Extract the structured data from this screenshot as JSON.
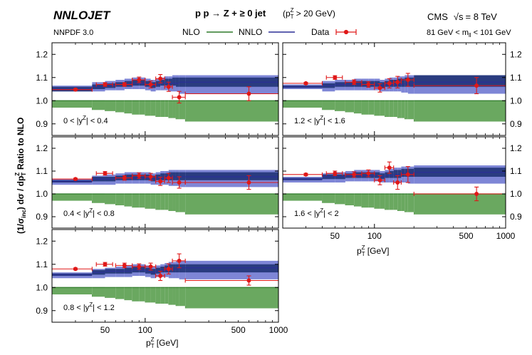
{
  "header": {
    "brand": "NNLOJET",
    "pdf": "NNPDF 3.0",
    "process": "p p → Z + ≥ 0 jet",
    "cut_p": "(p",
    "cut_T": "T",
    "cut_Z": "Z",
    "cut_rest": " > 20 GeV)",
    "experiment": "CMS",
    "sqrt": "√s",
    "energy": "= 8 TeV",
    "mass_left": "81 GeV < m",
    "mass_sub": "ll",
    "mass_right": " < 101 GeV"
  },
  "legend": {
    "nlo": "NLO",
    "nnlo": "NNLO",
    "data": "Data"
  },
  "axes": {
    "ylabel": "(1/σinc) dσ / dp_T^Z",
    "ylabel_a": "(1/σ",
    "ylabel_sub": "inc",
    "ylabel_b": ") dσ / dp",
    "ylabel_c": "T",
    "ylabel_d": "Z",
    "ylabel2": "Ratio to NLO",
    "xlabel_p": "p",
    "xlabel_T": "T",
    "xlabel_Z": "Z",
    "xlabel_unit": " [GeV]"
  },
  "colors": {
    "nlo_band": "#6aa860",
    "nlo_line": "#2f7a2a",
    "nnlo_band": "#7e86d6",
    "nnlo_core": "#2a3c80",
    "nnlo_line": "#2b2f96",
    "data": "#e01818"
  },
  "chart_data": {
    "type": "scatter",
    "xscale": "log",
    "xlim": [
      20,
      1000
    ],
    "ylim": [
      0.85,
      1.25
    ],
    "x_ticks": [
      50,
      100,
      500,
      1000
    ],
    "y_ticks": [
      0.9,
      1.0,
      1.1,
      1.2
    ],
    "bin_edges": [
      20,
      40,
      50,
      60,
      70,
      80,
      90,
      100,
      110,
      120,
      130,
      140,
      150,
      160,
      170,
      180,
      200,
      1000
    ],
    "panels": [
      {
        "label": "0 < |y^Z| < 0.4",
        "label_a": "0 < |y",
        "label_sup": "Z",
        "label_b": "| < 0.4",
        "nlo_lo": [
          0.97,
          0.96,
          0.955,
          0.95,
          0.945,
          0.94,
          0.94,
          0.935,
          0.935,
          0.93,
          0.93,
          0.93,
          0.925,
          0.925,
          0.92,
          0.92,
          0.91
        ],
        "nnlo": [
          1.05,
          1.06,
          1.065,
          1.07,
          1.07,
          1.075,
          1.075,
          1.07,
          1.065,
          1.07,
          1.075,
          1.075,
          1.075,
          1.075,
          1.075,
          1.08,
          1.08
        ],
        "nnlo_lo": [
          1.04,
          1.05,
          1.055,
          1.06,
          1.06,
          1.065,
          1.065,
          1.06,
          1.055,
          1.06,
          1.065,
          1.065,
          1.065,
          1.065,
          1.06,
          1.06,
          1.06
        ],
        "nnlo_hi": [
          1.06,
          1.07,
          1.075,
          1.08,
          1.085,
          1.09,
          1.09,
          1.085,
          1.08,
          1.085,
          1.09,
          1.095,
          1.095,
          1.1,
          1.1,
          1.1,
          1.1
        ],
        "band_lo": [
          1.04,
          1.04,
          1.045,
          1.045,
          1.05,
          1.05,
          1.05,
          1.045,
          1.04,
          1.045,
          1.045,
          1.045,
          1.04,
          1.04,
          1.04,
          1.03,
          1.03
        ],
        "band_hi": [
          1.065,
          1.08,
          1.085,
          1.09,
          1.095,
          1.1,
          1.1,
          1.095,
          1.09,
          1.095,
          1.1,
          1.105,
          1.105,
          1.11,
          1.11,
          1.11,
          1.11
        ],
        "data": [
          {
            "x": 30,
            "y": 1.048,
            "xlo": 20,
            "xhi": 40,
            "err": 0.004
          },
          {
            "x": 50,
            "y": 1.07,
            "xlo": 43,
            "xhi": 57,
            "err": 0.008
          },
          {
            "x": 70,
            "y": 1.07,
            "xlo": 60,
            "xhi": 80,
            "err": 0.008
          },
          {
            "x": 90,
            "y": 1.09,
            "xlo": 80,
            "xhi": 100,
            "err": 0.012
          },
          {
            "x": 110,
            "y": 1.07,
            "xlo": 100,
            "xhi": 120,
            "err": 0.015
          },
          {
            "x": 130,
            "y": 1.095,
            "xlo": 120,
            "xhi": 140,
            "err": 0.018
          },
          {
            "x": 150,
            "y": 1.06,
            "xlo": 140,
            "xhi": 160,
            "err": 0.02
          },
          {
            "x": 180,
            "y": 1.015,
            "xlo": 160,
            "xhi": 200,
            "err": 0.025
          },
          {
            "x": 600,
            "y": 1.03,
            "xlo": 200,
            "xhi": 1000,
            "err": 0.03
          }
        ]
      },
      {
        "label": "1.2 < |y^Z| < 1.6",
        "label_a": "1.2 < |y",
        "label_sup": "Z",
        "label_b": "| < 1.6",
        "nlo_lo": [
          0.97,
          0.96,
          0.955,
          0.95,
          0.945,
          0.94,
          0.94,
          0.935,
          0.935,
          0.93,
          0.93,
          0.93,
          0.925,
          0.925,
          0.92,
          0.92,
          0.91
        ],
        "nnlo": [
          1.06,
          1.065,
          1.07,
          1.07,
          1.07,
          1.07,
          1.07,
          1.07,
          1.065,
          1.07,
          1.07,
          1.07,
          1.07,
          1.07,
          1.075,
          1.075,
          1.08
        ],
        "nnlo_lo": [
          1.055,
          1.055,
          1.06,
          1.06,
          1.06,
          1.06,
          1.06,
          1.06,
          1.055,
          1.06,
          1.06,
          1.06,
          1.06,
          1.06,
          1.06,
          1.06,
          1.06
        ],
        "nnlo_hi": [
          1.065,
          1.075,
          1.08,
          1.08,
          1.085,
          1.085,
          1.085,
          1.085,
          1.08,
          1.085,
          1.09,
          1.09,
          1.095,
          1.095,
          1.1,
          1.1,
          1.11
        ],
        "band_lo": [
          1.05,
          1.04,
          1.045,
          1.045,
          1.045,
          1.045,
          1.045,
          1.045,
          1.04,
          1.04,
          1.04,
          1.04,
          1.04,
          1.035,
          1.035,
          1.03,
          1.03
        ],
        "band_hi": [
          1.07,
          1.085,
          1.09,
          1.09,
          1.095,
          1.095,
          1.095,
          1.095,
          1.09,
          1.095,
          1.1,
          1.1,
          1.105,
          1.105,
          1.11,
          1.11,
          1.11
        ],
        "data": [
          {
            "x": 30,
            "y": 1.075,
            "xlo": 20,
            "xhi": 40,
            "err": 0.004
          },
          {
            "x": 50,
            "y": 1.1,
            "xlo": 43,
            "xhi": 57,
            "err": 0.008
          },
          {
            "x": 70,
            "y": 1.08,
            "xlo": 60,
            "xhi": 80,
            "err": 0.01
          },
          {
            "x": 90,
            "y": 1.07,
            "xlo": 80,
            "xhi": 100,
            "err": 0.012
          },
          {
            "x": 110,
            "y": 1.055,
            "xlo": 100,
            "xhi": 120,
            "err": 0.018
          },
          {
            "x": 130,
            "y": 1.075,
            "xlo": 120,
            "xhi": 140,
            "err": 0.02
          },
          {
            "x": 150,
            "y": 1.08,
            "xlo": 140,
            "xhi": 160,
            "err": 0.025
          },
          {
            "x": 180,
            "y": 1.09,
            "xlo": 160,
            "xhi": 200,
            "err": 0.028
          },
          {
            "x": 600,
            "y": 1.065,
            "xlo": 200,
            "xhi": 1000,
            "err": 0.035
          }
        ]
      },
      {
        "label": "0.4 < |y^Z| < 0.8",
        "label_a": "0.4 < |y",
        "label_sup": "Z",
        "label_b": "| < 0.8",
        "nlo_lo": [
          0.97,
          0.96,
          0.955,
          0.95,
          0.945,
          0.94,
          0.94,
          0.935,
          0.935,
          0.93,
          0.93,
          0.93,
          0.925,
          0.925,
          0.92,
          0.92,
          0.91
        ],
        "nnlo": [
          1.055,
          1.065,
          1.065,
          1.07,
          1.07,
          1.07,
          1.07,
          1.07,
          1.065,
          1.07,
          1.07,
          1.075,
          1.075,
          1.075,
          1.075,
          1.075,
          1.075
        ],
        "nnlo_lo": [
          1.05,
          1.055,
          1.055,
          1.06,
          1.06,
          1.06,
          1.06,
          1.06,
          1.055,
          1.06,
          1.06,
          1.06,
          1.06,
          1.06,
          1.06,
          1.06,
          1.06
        ],
        "nnlo_hi": [
          1.06,
          1.075,
          1.075,
          1.08,
          1.085,
          1.085,
          1.085,
          1.085,
          1.08,
          1.085,
          1.09,
          1.09,
          1.095,
          1.095,
          1.095,
          1.095,
          1.095
        ],
        "band_lo": [
          1.04,
          1.04,
          1.04,
          1.045,
          1.045,
          1.045,
          1.045,
          1.045,
          1.04,
          1.04,
          1.04,
          1.04,
          1.035,
          1.035,
          1.035,
          1.03,
          1.03
        ],
        "band_hi": [
          1.065,
          1.08,
          1.085,
          1.09,
          1.095,
          1.095,
          1.095,
          1.095,
          1.09,
          1.095,
          1.1,
          1.1,
          1.105,
          1.105,
          1.105,
          1.105,
          1.105
        ],
        "data": [
          {
            "x": 30,
            "y": 1.065,
            "xlo": 20,
            "xhi": 40,
            "err": 0.004
          },
          {
            "x": 50,
            "y": 1.09,
            "xlo": 43,
            "xhi": 57,
            "err": 0.008
          },
          {
            "x": 70,
            "y": 1.07,
            "xlo": 60,
            "xhi": 80,
            "err": 0.01
          },
          {
            "x": 90,
            "y": 1.08,
            "xlo": 80,
            "xhi": 100,
            "err": 0.012
          },
          {
            "x": 110,
            "y": 1.075,
            "xlo": 100,
            "xhi": 120,
            "err": 0.015
          },
          {
            "x": 130,
            "y": 1.055,
            "xlo": 120,
            "xhi": 140,
            "err": 0.018
          },
          {
            "x": 150,
            "y": 1.07,
            "xlo": 140,
            "xhi": 160,
            "err": 0.02
          },
          {
            "x": 180,
            "y": 1.05,
            "xlo": 160,
            "xhi": 200,
            "err": 0.025
          },
          {
            "x": 600,
            "y": 1.05,
            "xlo": 200,
            "xhi": 1000,
            "err": 0.03
          }
        ]
      },
      {
        "label": "1.6 < |y^Z| < 2",
        "label_a": "1.6 < |y",
        "label_sup": "Z",
        "label_b": "| < 2",
        "nlo_lo": [
          0.97,
          0.96,
          0.955,
          0.95,
          0.945,
          0.94,
          0.94,
          0.935,
          0.935,
          0.93,
          0.93,
          0.93,
          0.925,
          0.925,
          0.92,
          0.92,
          0.91
        ],
        "nnlo": [
          1.065,
          1.075,
          1.075,
          1.08,
          1.08,
          1.08,
          1.08,
          1.08,
          1.075,
          1.08,
          1.08,
          1.085,
          1.085,
          1.09,
          1.09,
          1.09,
          1.095
        ],
        "nnlo_lo": [
          1.06,
          1.065,
          1.065,
          1.07,
          1.07,
          1.07,
          1.07,
          1.07,
          1.065,
          1.07,
          1.07,
          1.07,
          1.07,
          1.075,
          1.075,
          1.075,
          1.075
        ],
        "nnlo_hi": [
          1.07,
          1.085,
          1.085,
          1.09,
          1.095,
          1.095,
          1.095,
          1.095,
          1.09,
          1.095,
          1.1,
          1.105,
          1.105,
          1.11,
          1.11,
          1.11,
          1.115
        ],
        "band_lo": [
          1.05,
          1.05,
          1.05,
          1.055,
          1.055,
          1.055,
          1.055,
          1.055,
          1.05,
          1.05,
          1.05,
          1.05,
          1.05,
          1.05,
          1.05,
          1.045,
          1.045
        ],
        "band_hi": [
          1.075,
          1.09,
          1.095,
          1.1,
          1.105,
          1.105,
          1.105,
          1.105,
          1.1,
          1.105,
          1.11,
          1.115,
          1.115,
          1.12,
          1.12,
          1.12,
          1.125
        ],
        "data": [
          {
            "x": 30,
            "y": 1.085,
            "xlo": 20,
            "xhi": 40,
            "err": 0.005
          },
          {
            "x": 50,
            "y": 1.09,
            "xlo": 43,
            "xhi": 57,
            "err": 0.01
          },
          {
            "x": 70,
            "y": 1.085,
            "xlo": 60,
            "xhi": 80,
            "err": 0.012
          },
          {
            "x": 90,
            "y": 1.09,
            "xlo": 80,
            "xhi": 100,
            "err": 0.015
          },
          {
            "x": 110,
            "y": 1.06,
            "xlo": 100,
            "xhi": 120,
            "err": 0.02
          },
          {
            "x": 130,
            "y": 1.115,
            "xlo": 120,
            "xhi": 140,
            "err": 0.025
          },
          {
            "x": 150,
            "y": 1.05,
            "xlo": 140,
            "xhi": 160,
            "err": 0.03
          },
          {
            "x": 180,
            "y": 1.085,
            "xlo": 160,
            "xhi": 200,
            "err": 0.035
          },
          {
            "x": 600,
            "y": 1.0,
            "xlo": 200,
            "xhi": 1000,
            "err": 0.03
          }
        ]
      },
      {
        "label": "0.8 < |y^Z| < 1.2",
        "label_a": "0.8 < |y",
        "label_sup": "Z",
        "label_b": "| < 1.2",
        "nlo_lo": [
          0.97,
          0.96,
          0.955,
          0.95,
          0.945,
          0.94,
          0.94,
          0.935,
          0.935,
          0.93,
          0.93,
          0.93,
          0.925,
          0.925,
          0.92,
          0.92,
          0.91
        ],
        "nnlo": [
          1.055,
          1.065,
          1.07,
          1.07,
          1.07,
          1.075,
          1.075,
          1.07,
          1.065,
          1.07,
          1.075,
          1.075,
          1.08,
          1.08,
          1.08,
          1.085,
          1.085
        ],
        "nnlo_lo": [
          1.05,
          1.055,
          1.06,
          1.06,
          1.06,
          1.065,
          1.065,
          1.06,
          1.055,
          1.06,
          1.065,
          1.065,
          1.065,
          1.065,
          1.065,
          1.065,
          1.065
        ],
        "nnlo_hi": [
          1.06,
          1.075,
          1.08,
          1.08,
          1.085,
          1.09,
          1.09,
          1.085,
          1.08,
          1.085,
          1.09,
          1.095,
          1.1,
          1.1,
          1.1,
          1.1,
          1.1
        ],
        "band_lo": [
          1.04,
          1.04,
          1.045,
          1.045,
          1.045,
          1.05,
          1.05,
          1.045,
          1.04,
          1.045,
          1.045,
          1.045,
          1.04,
          1.04,
          1.04,
          1.035,
          1.035
        ],
        "band_hi": [
          1.065,
          1.08,
          1.085,
          1.09,
          1.095,
          1.1,
          1.1,
          1.095,
          1.09,
          1.095,
          1.1,
          1.105,
          1.11,
          1.11,
          1.115,
          1.115,
          1.115
        ],
        "data": [
          {
            "x": 30,
            "y": 1.08,
            "xlo": 20,
            "xhi": 40,
            "err": 0.004
          },
          {
            "x": 50,
            "y": 1.1,
            "xlo": 43,
            "xhi": 57,
            "err": 0.008
          },
          {
            "x": 70,
            "y": 1.095,
            "xlo": 60,
            "xhi": 80,
            "err": 0.01
          },
          {
            "x": 90,
            "y": 1.09,
            "xlo": 80,
            "xhi": 100,
            "err": 0.012
          },
          {
            "x": 110,
            "y": 1.09,
            "xlo": 100,
            "xhi": 120,
            "err": 0.015
          },
          {
            "x": 130,
            "y": 1.05,
            "xlo": 120,
            "xhi": 140,
            "err": 0.02
          },
          {
            "x": 150,
            "y": 1.08,
            "xlo": 140,
            "xhi": 160,
            "err": 0.022
          },
          {
            "x": 180,
            "y": 1.115,
            "xlo": 160,
            "xhi": 200,
            "err": 0.03
          },
          {
            "x": 600,
            "y": 1.03,
            "xlo": 200,
            "xhi": 1000,
            "err": 0.02
          }
        ]
      }
    ]
  }
}
